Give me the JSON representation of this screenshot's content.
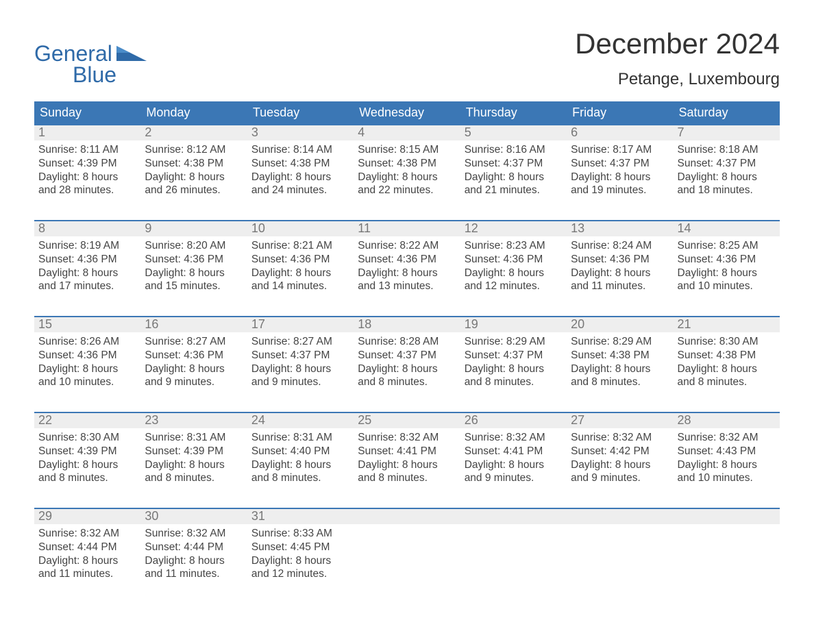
{
  "logo": {
    "word1": "General",
    "word2": "Blue"
  },
  "title": "December 2024",
  "location": "Petange, Luxembourg",
  "colors": {
    "header_bg": "#3b77b5",
    "header_text": "#ffffff",
    "daynum_bg": "#eeeeee",
    "daynum_text": "#777777",
    "body_text": "#444444",
    "logo_color": "#2f6aa8",
    "rule_color": "#3b77b5"
  },
  "weekdays": [
    "Sunday",
    "Monday",
    "Tuesday",
    "Wednesday",
    "Thursday",
    "Friday",
    "Saturday"
  ],
  "labels": {
    "sunrise": "Sunrise:",
    "sunset": "Sunset:",
    "daylight": "Daylight:"
  },
  "days": [
    {
      "n": "1",
      "sunrise": "8:11 AM",
      "sunset": "4:39 PM",
      "dh": "8",
      "dm": "28"
    },
    {
      "n": "2",
      "sunrise": "8:12 AM",
      "sunset": "4:38 PM",
      "dh": "8",
      "dm": "26"
    },
    {
      "n": "3",
      "sunrise": "8:14 AM",
      "sunset": "4:38 PM",
      "dh": "8",
      "dm": "24"
    },
    {
      "n": "4",
      "sunrise": "8:15 AM",
      "sunset": "4:38 PM",
      "dh": "8",
      "dm": "22"
    },
    {
      "n": "5",
      "sunrise": "8:16 AM",
      "sunset": "4:37 PM",
      "dh": "8",
      "dm": "21"
    },
    {
      "n": "6",
      "sunrise": "8:17 AM",
      "sunset": "4:37 PM",
      "dh": "8",
      "dm": "19"
    },
    {
      "n": "7",
      "sunrise": "8:18 AM",
      "sunset": "4:37 PM",
      "dh": "8",
      "dm": "18"
    },
    {
      "n": "8",
      "sunrise": "8:19 AM",
      "sunset": "4:36 PM",
      "dh": "8",
      "dm": "17"
    },
    {
      "n": "9",
      "sunrise": "8:20 AM",
      "sunset": "4:36 PM",
      "dh": "8",
      "dm": "15"
    },
    {
      "n": "10",
      "sunrise": "8:21 AM",
      "sunset": "4:36 PM",
      "dh": "8",
      "dm": "14"
    },
    {
      "n": "11",
      "sunrise": "8:22 AM",
      "sunset": "4:36 PM",
      "dh": "8",
      "dm": "13"
    },
    {
      "n": "12",
      "sunrise": "8:23 AM",
      "sunset": "4:36 PM",
      "dh": "8",
      "dm": "12"
    },
    {
      "n": "13",
      "sunrise": "8:24 AM",
      "sunset": "4:36 PM",
      "dh": "8",
      "dm": "11"
    },
    {
      "n": "14",
      "sunrise": "8:25 AM",
      "sunset": "4:36 PM",
      "dh": "8",
      "dm": "10"
    },
    {
      "n": "15",
      "sunrise": "8:26 AM",
      "sunset": "4:36 PM",
      "dh": "8",
      "dm": "10"
    },
    {
      "n": "16",
      "sunrise": "8:27 AM",
      "sunset": "4:36 PM",
      "dh": "8",
      "dm": "9"
    },
    {
      "n": "17",
      "sunrise": "8:27 AM",
      "sunset": "4:37 PM",
      "dh": "8",
      "dm": "9"
    },
    {
      "n": "18",
      "sunrise": "8:28 AM",
      "sunset": "4:37 PM",
      "dh": "8",
      "dm": "8"
    },
    {
      "n": "19",
      "sunrise": "8:29 AM",
      "sunset": "4:37 PM",
      "dh": "8",
      "dm": "8"
    },
    {
      "n": "20",
      "sunrise": "8:29 AM",
      "sunset": "4:38 PM",
      "dh": "8",
      "dm": "8"
    },
    {
      "n": "21",
      "sunrise": "8:30 AM",
      "sunset": "4:38 PM",
      "dh": "8",
      "dm": "8"
    },
    {
      "n": "22",
      "sunrise": "8:30 AM",
      "sunset": "4:39 PM",
      "dh": "8",
      "dm": "8"
    },
    {
      "n": "23",
      "sunrise": "8:31 AM",
      "sunset": "4:39 PM",
      "dh": "8",
      "dm": "8"
    },
    {
      "n": "24",
      "sunrise": "8:31 AM",
      "sunset": "4:40 PM",
      "dh": "8",
      "dm": "8"
    },
    {
      "n": "25",
      "sunrise": "8:32 AM",
      "sunset": "4:41 PM",
      "dh": "8",
      "dm": "8"
    },
    {
      "n": "26",
      "sunrise": "8:32 AM",
      "sunset": "4:41 PM",
      "dh": "8",
      "dm": "9"
    },
    {
      "n": "27",
      "sunrise": "8:32 AM",
      "sunset": "4:42 PM",
      "dh": "8",
      "dm": "9"
    },
    {
      "n": "28",
      "sunrise": "8:32 AM",
      "sunset": "4:43 PM",
      "dh": "8",
      "dm": "10"
    },
    {
      "n": "29",
      "sunrise": "8:32 AM",
      "sunset": "4:44 PM",
      "dh": "8",
      "dm": "11"
    },
    {
      "n": "30",
      "sunrise": "8:32 AM",
      "sunset": "4:44 PM",
      "dh": "8",
      "dm": "11"
    },
    {
      "n": "31",
      "sunrise": "8:33 AM",
      "sunset": "4:45 PM",
      "dh": "8",
      "dm": "12"
    }
  ],
  "layout": {
    "start_weekday": 0,
    "total_days": 31,
    "weeks": 5
  }
}
